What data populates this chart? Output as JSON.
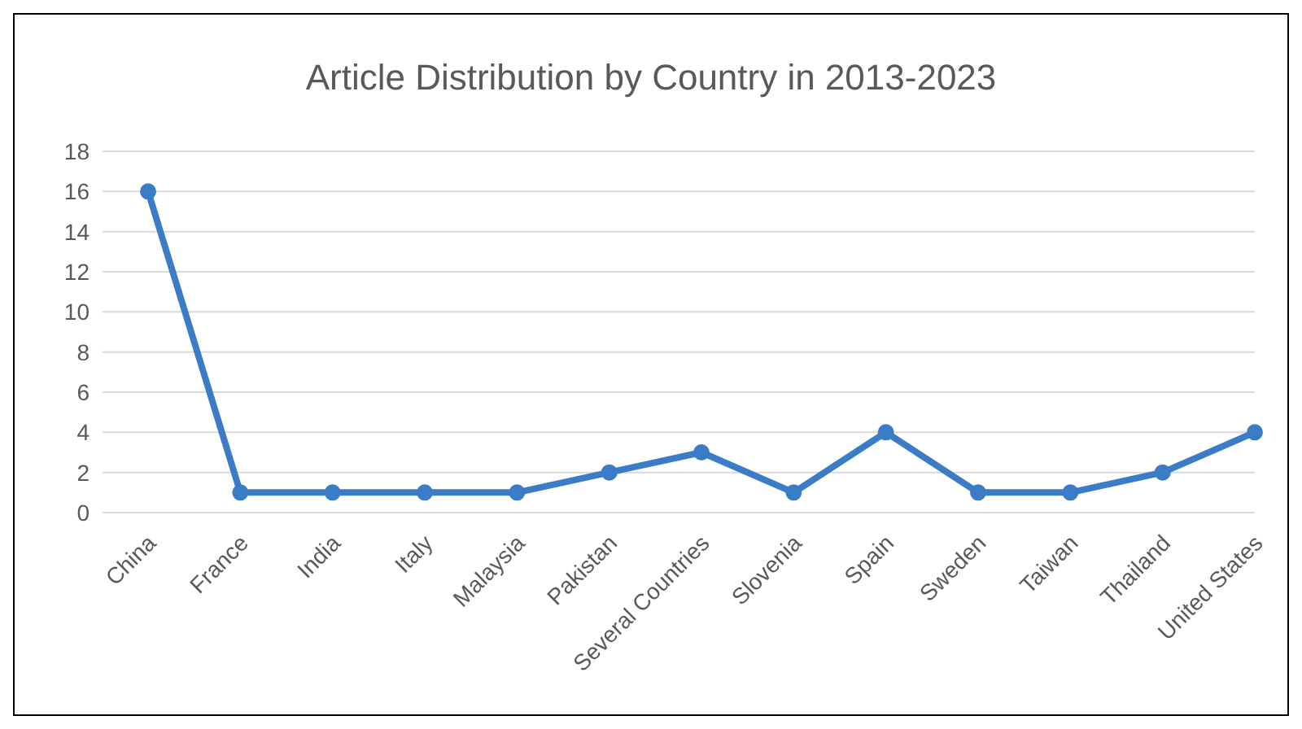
{
  "chart_data": {
    "type": "line",
    "title": "Article Distribution by Country in 2013-2023",
    "categories": [
      "China",
      "France",
      "India",
      "Italy",
      "Malaysia",
      "Pakistan",
      "Several Countries",
      "Slovenia",
      "Spain",
      "Sweden",
      "Taiwan",
      "Thailand",
      "United States"
    ],
    "series": [
      {
        "color": "#3a7cc6",
        "values": [
          16,
          1,
          1,
          1,
          1,
          2,
          3,
          1,
          4,
          1,
          1,
          2,
          4
        ]
      }
    ],
    "ylim": [
      0,
      18
    ],
    "yticks": [
      0,
      2,
      4,
      6,
      8,
      10,
      12,
      14,
      16,
      18
    ],
    "grid": "y",
    "legend": false,
    "marker": "circle",
    "line_style": "solid"
  }
}
